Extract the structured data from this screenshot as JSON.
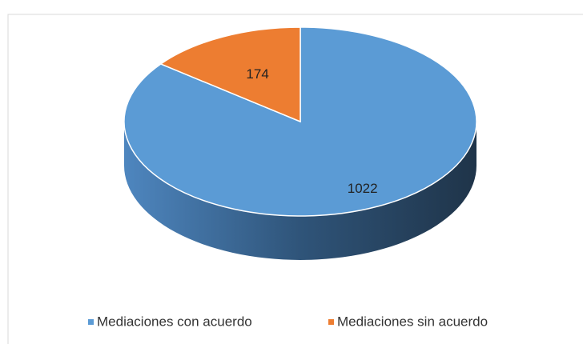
{
  "chart_data": {
    "type": "pie",
    "categories": [
      "Mediaciones con acuerdo",
      "Mediaciones sin acuerdo"
    ],
    "values": [
      1022,
      174
    ],
    "colors": [
      "#5b9bd5",
      "#ed7d31"
    ],
    "legend": "bottom"
  }
}
